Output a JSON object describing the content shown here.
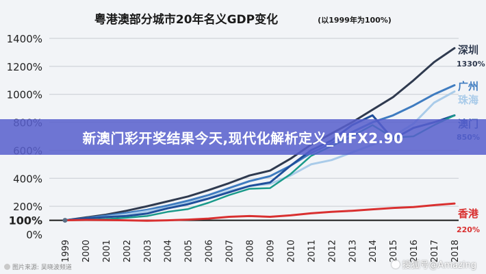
{
  "banner": {
    "text": "新澳门彩开奖结果今天,现代化解析定义_MFX2.90"
  },
  "source": {
    "text": "图片来源: 吴晓波频道"
  },
  "watermark": {
    "text": "搜狐号@Amazing"
  },
  "chart_data": {
    "type": "line",
    "title": "粤港澳部分城市20年名义GDP变化",
    "subtitle": "(以1999年为100%)",
    "xlabel": "",
    "ylabel": "",
    "x": [
      "1999",
      "2000",
      "2001",
      "2002",
      "2003",
      "2004",
      "2005",
      "2006",
      "2007",
      "2008",
      "2009",
      "2010",
      "2011",
      "2012",
      "2013",
      "2014",
      "2015",
      "2016",
      "2017",
      "2018"
    ],
    "ylim": [
      0,
      1400
    ],
    "yticks": [
      "0%",
      "100%",
      "200%",
      "400%",
      "600%",
      "800%",
      "1000%",
      "1200%",
      "1400%"
    ],
    "ytick_values": [
      0,
      100,
      200,
      400,
      600,
      800,
      1000,
      1200,
      1400
    ],
    "grid": true,
    "series": [
      {
        "name": "深圳",
        "end_label": "1330%",
        "color": "#2f3a4f",
        "width": 3,
        "values": [
          100,
          120,
          140,
          168,
          200,
          235,
          270,
          315,
          365,
          420,
          455,
          540,
          640,
          720,
          800,
          890,
          980,
          1100,
          1230,
          1330
        ]
      },
      {
        "name": "广州",
        "end_label": "",
        "color": "#3f7cc0",
        "width": 3,
        "values": [
          100,
          115,
          133,
          152,
          175,
          205,
          240,
          280,
          330,
          380,
          415,
          490,
          580,
          650,
          730,
          800,
          850,
          920,
          1000,
          1065
        ]
      },
      {
        "name": "珠海",
        "end_label": "",
        "color": "#a9cbe9",
        "width": 3,
        "values": [
          100,
          112,
          125,
          142,
          165,
          190,
          225,
          260,
          310,
          345,
          360,
          420,
          500,
          530,
          585,
          640,
          700,
          790,
          940,
          1020
        ]
      },
      {
        "name": "澳门",
        "end_label": "850%",
        "color": "#1f4f9a",
        "width": 3,
        "values": [
          100,
          113,
          123,
          130,
          148,
          185,
          215,
          255,
          300,
          345,
          370,
          490,
          600,
          670,
          780,
          850,
          680,
          760,
          800,
          850
        ]
      },
      {
        "name": "",
        "end_label": "",
        "color": "#1a9a8a",
        "width": 2.5,
        "values": [
          100,
          103,
          108,
          118,
          130,
          160,
          180,
          225,
          280,
          325,
          330,
          430,
          560,
          630,
          700,
          780,
          690,
          700,
          780,
          850
        ]
      },
      {
        "name": "香港",
        "end_label": "220%",
        "color": "#d93030",
        "width": 3,
        "values": [
          100,
          103,
          102,
          100,
          97,
          100,
          105,
          112,
          125,
          130,
          125,
          135,
          150,
          160,
          168,
          178,
          188,
          195,
          208,
          220
        ]
      }
    ]
  }
}
